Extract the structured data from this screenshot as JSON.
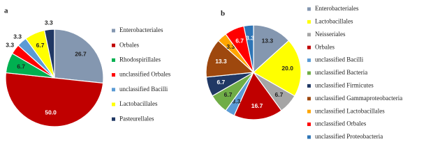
{
  "chart_data": [
    {
      "type": "pie",
      "panel": "a",
      "categories": [
        "Enterobacteriales",
        "Orbales",
        "Rhodospirillales",
        "unclassified Orbales",
        "unclassified Bacilli",
        "Lactobacillales",
        "Pasteurellales"
      ],
      "values": [
        26.7,
        50,
        6.7,
        3.3,
        3.3,
        6.7,
        3.3
      ],
      "value_labels": [
        "26.7",
        "50.0",
        "6.7",
        "3.3",
        "3.3",
        "6.7",
        "3.3"
      ],
      "colors": [
        "#8497b0",
        "#c00000",
        "#00b050",
        "#ff0000",
        "#5b9bd5",
        "#ffff00",
        "#203864"
      ]
    },
    {
      "type": "pie",
      "panel": "b",
      "categories": [
        "Enterobacteriales",
        "Lactobacillales",
        "Neisseriales",
        "Orbales",
        "unclassified Bacilli",
        "unclassified Bacteria",
        "unclassified Firmicutes",
        "unclassified Gammaproteobacteria",
        "unclassified Lactobacillales",
        "unclassified Orbales",
        "unclassified Proteobacteria"
      ],
      "values": [
        13.3,
        20,
        6.7,
        16.7,
        3.3,
        6.7,
        6.7,
        13.3,
        3.3,
        6.7,
        3.3
      ],
      "value_labels": [
        "13.3",
        "20.0",
        "6.7",
        "16.7",
        "3.3",
        "6.7",
        "6.7",
        "13.3",
        "3.3",
        "6.7",
        "3.3"
      ],
      "colors": [
        "#8497b0",
        "#ffff00",
        "#a5a5a5",
        "#c00000",
        "#5b9bd5",
        "#70ad47",
        "#203864",
        "#9e480e",
        "#ffa500",
        "#ff0000",
        "#2e75b6"
      ]
    }
  ]
}
